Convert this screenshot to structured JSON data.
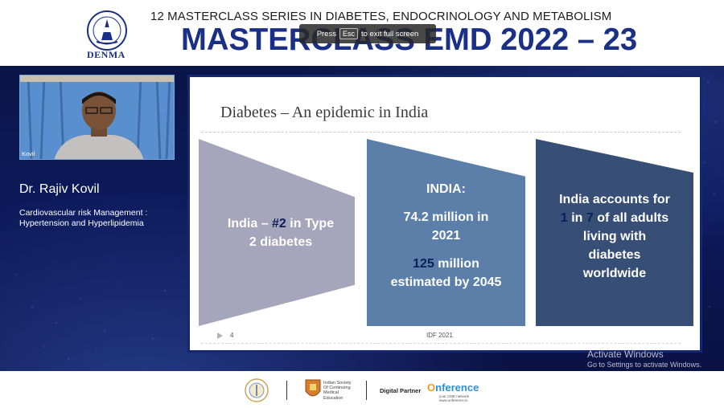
{
  "header": {
    "logo_text": "DENMA",
    "series_title": "12 MASTERCLASS SERIES IN DIABETES, ENDOCRINOLOGY AND METABOLISM",
    "main_title": "MASTERCLASS EMD 2022 – 23"
  },
  "fullscreen_overlay": {
    "prefix": "Press",
    "key": "Esc",
    "suffix": "to exit full screen"
  },
  "speaker": {
    "video_label": "Kovil",
    "name": "Dr. Rajiv Kovil",
    "topic_line1": "Cardiovascular risk Management :",
    "topic_line2": "Hypertension and Hyperlipidemia"
  },
  "slide": {
    "title": "Diabetes – An epidemic in India",
    "box1": {
      "pre": "India – ",
      "highlight": "#2",
      "post": " in Type",
      "line2": "2 diabetes"
    },
    "box2": {
      "heading": "INDIA:",
      "line1": "74.2 million in",
      "line2": "2021",
      "highlight": "125",
      "line3_post": " million",
      "line4": "estimated  by 2045"
    },
    "box3": {
      "line1": "India accounts for",
      "hl1": "1",
      "mid": " in ",
      "hl2": "7",
      "line2_post": " of all adults",
      "line3": "living with",
      "line4": "diabetes",
      "line5": "worldwide"
    },
    "page_number": "4",
    "source": "IDF 2021"
  },
  "windows_notice": {
    "title": "Activate Windows",
    "subtitle": "Go to Settings to activate Windows."
  },
  "footer": {
    "society_text": "Indian Society Of Continuing Medical Education",
    "digital_partner": "Digital Partner",
    "onference_o": "O",
    "onference_rest": "nference",
    "onference_sub": "your CME network www.onference.in"
  },
  "colors": {
    "brand_blue": "#1a2f86",
    "stage_bg": "#0c1a5a",
    "box1": "#a5a5bb",
    "box2": "#5b7fa9",
    "box3": "#374e76",
    "highlight_text": "#0c1f5c"
  }
}
